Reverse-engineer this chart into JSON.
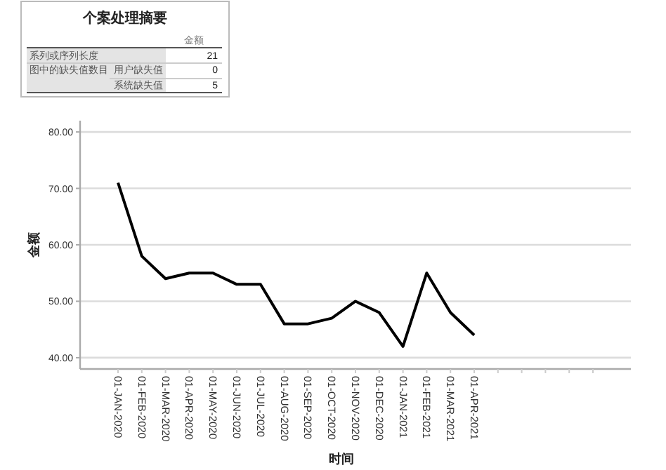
{
  "chart_data": [
    {
      "type": "other",
      "title": "个案处理摘要",
      "annotations": [
        "金额",
        "系列或序列长度",
        "21",
        "图中的缺失值数目",
        "用户缺失值",
        "0",
        "系统缺失值",
        "5"
      ]
    },
    {
      "type": "line",
      "xlabel": "时间",
      "ylabel": "金额",
      "categories": [
        "01-JAN-2020",
        "01-FEB-2020",
        "01-MAR-2020",
        "01-APR-2020",
        "01-MAY-2020",
        "01-JUN-2020",
        "01-JUL-2020",
        "01-AUG-2020",
        "01-SEP-2020",
        "01-OCT-2020",
        "01-NOV-2020",
        "01-DEC-2020",
        "01-JAN-2021",
        "01-FEB-2021",
        "01-MAR-2021",
        "01-APR-2021",
        null,
        null,
        null,
        null,
        null
      ],
      "series": [
        {
          "color": "#000000",
          "values": [
            71,
            58,
            54,
            55,
            55,
            53,
            53,
            46,
            46,
            47,
            50,
            48,
            42,
            55,
            48,
            44,
            null,
            null,
            null,
            null,
            null
          ]
        }
      ],
      "ylim": [
        38,
        82
      ],
      "yticks": [
        {
          "value": 40,
          "label": "40.00"
        },
        {
          "value": 50,
          "label": "50.00"
        },
        {
          "value": 60,
          "label": "60.00"
        },
        {
          "value": 70,
          "label": "70.00"
        },
        {
          "value": 80,
          "label": "80.00"
        }
      ],
      "grid": "y",
      "marker": "none",
      "line_style": "solid"
    }
  ]
}
